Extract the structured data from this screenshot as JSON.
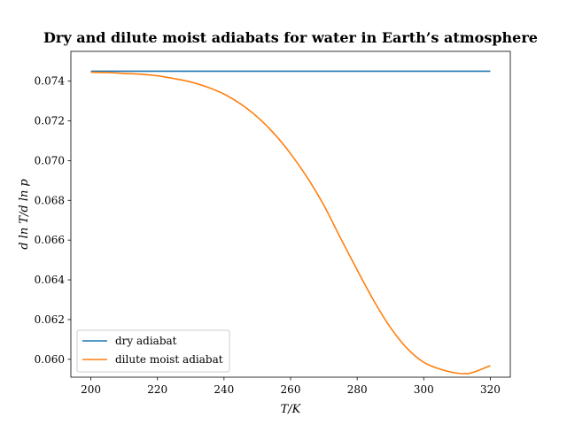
{
  "chart_data": {
    "type": "line",
    "title": "Dry and dilute moist adiabats for water in Earth’s atmosphere",
    "xlabel": "T/K",
    "ylabel": "d ln T/d ln p",
    "xlim": [
      194,
      326
    ],
    "ylim": [
      0.0591,
      0.0755
    ],
    "xticks": [
      200,
      220,
      240,
      260,
      280,
      300,
      320
    ],
    "yticks": [
      0.06,
      0.062,
      0.064,
      0.066,
      0.068,
      0.07,
      0.072,
      0.074
    ],
    "ytick_labels": [
      "0.060",
      "0.062",
      "0.064",
      "0.066",
      "0.068",
      "0.070",
      "0.072",
      "0.074"
    ],
    "grid": false,
    "legend_position": "lower-left",
    "series": [
      {
        "name": "dry adiabat",
        "color": "#1f77b4",
        "x": [
          200,
          320
        ],
        "y": [
          0.0745,
          0.0745
        ]
      },
      {
        "name": "dilute moist adiabat",
        "color": "#ff7f0e",
        "x": [
          200,
          205,
          210,
          215,
          220,
          225,
          230,
          235,
          240,
          245,
          250,
          255,
          260,
          265,
          270,
          275,
          280,
          285,
          290,
          295,
          300,
          305,
          310,
          313,
          315,
          320
        ],
        "y": [
          0.07445,
          0.07443,
          0.07439,
          0.07435,
          0.07427,
          0.07413,
          0.07396,
          0.0737,
          0.07335,
          0.07285,
          0.0722,
          0.07137,
          0.07035,
          0.06915,
          0.06775,
          0.0661,
          0.0645,
          0.06295,
          0.0616,
          0.06055,
          0.05985,
          0.0595,
          0.0593,
          0.05928,
          0.05935,
          0.05968
        ]
      }
    ]
  }
}
